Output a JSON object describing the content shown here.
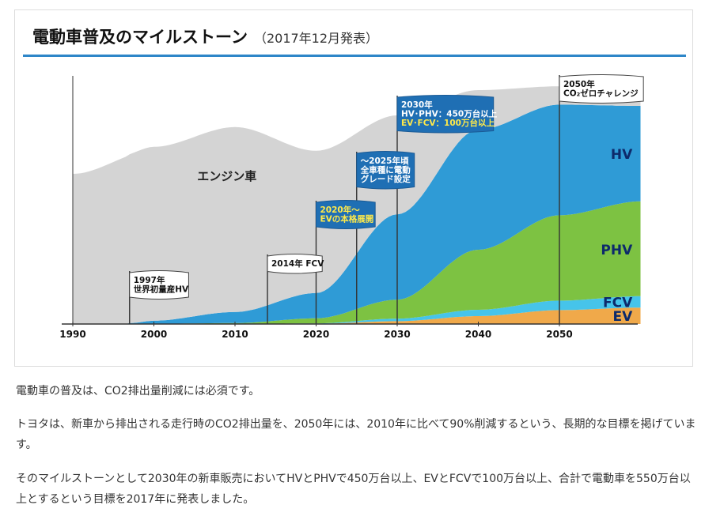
{
  "header": {
    "title": "電動車普及のマイルストーン",
    "subtitle": "（2017年12月発表）"
  },
  "chart_data": {
    "type": "area",
    "stacked": true,
    "x_ticks": [
      "1990",
      "2000",
      "2010",
      "2020",
      "2030",
      "2040",
      "2050"
    ],
    "xlim": [
      1990,
      2060
    ],
    "series": [
      {
        "name": "EV",
        "color": "#f0a94a",
        "points": [
          [
            1997,
            0
          ],
          [
            2010,
            0
          ],
          [
            2020,
            0.1
          ],
          [
            2030,
            0.9
          ],
          [
            2040,
            2.5
          ],
          [
            2050,
            4.4
          ],
          [
            2060,
            5.2
          ]
        ]
      },
      {
        "name": "FCV",
        "color": "#46c4ea",
        "points": [
          [
            1997,
            0
          ],
          [
            2010,
            0
          ],
          [
            2020,
            0.1
          ],
          [
            2030,
            0.8
          ],
          [
            2040,
            2.0
          ],
          [
            2050,
            3.0
          ],
          [
            2060,
            3.6
          ]
        ]
      },
      {
        "name": "PHV",
        "color": "#7dc242",
        "points": [
          [
            1997,
            0
          ],
          [
            2010,
            0.3
          ],
          [
            2020,
            1.6
          ],
          [
            2030,
            6.0
          ],
          [
            2040,
            19.0
          ],
          [
            2050,
            27.0
          ],
          [
            2060,
            30.0
          ]
        ]
      },
      {
        "name": "HV",
        "color": "#2f9bd6",
        "points": [
          [
            1997,
            0.3
          ],
          [
            2000,
            1.0
          ],
          [
            2010,
            3.5
          ],
          [
            2020,
            8.0
          ],
          [
            2030,
            27.0
          ],
          [
            2040,
            38.0
          ],
          [
            2050,
            35.0
          ],
          [
            2060,
            30.2
          ]
        ]
      },
      {
        "name": "エンジン車",
        "color": "#d4d4d4",
        "points": [
          [
            1990,
            47.5
          ],
          [
            2000,
            55.0
          ],
          [
            2010,
            58.5
          ],
          [
            2020,
            45.0
          ],
          [
            2030,
            31.3
          ],
          [
            2040,
            12.5
          ],
          [
            2050,
            5.8
          ],
          [
            2060,
            3.0
          ]
        ]
      }
    ],
    "milestones": [
      {
        "x": 1997,
        "lines": [
          "1997年",
          "世界初量産HV"
        ],
        "style": "white"
      },
      {
        "x": 2014,
        "lines": [
          "2014年 FCV"
        ],
        "style": "white"
      },
      {
        "x": 2020,
        "lines": [
          "2020年～",
          "EVの本格展開"
        ],
        "style": "blue-yellow"
      },
      {
        "x": 2025,
        "lines": [
          "～2025年頃",
          "全車種に電動",
          "グレード設定"
        ],
        "style": "blue"
      },
      {
        "x": 2030,
        "lines": [
          "2030年",
          "HV･PHV：450万台以上",
          "EV･FCV：100万台以上"
        ],
        "style": "blue-mixed"
      },
      {
        "x": 2050,
        "lines": [
          "2050年",
          "CO₂ゼロチャレンジ"
        ],
        "style": "white"
      }
    ]
  },
  "body_text": {
    "p1": "電動車の普及は、CO2排出量削減には必須です。",
    "p2": "トヨタは、新車から排出される走行時のCO2排出量を、2050年には、2010年に比べて90%削減するという、長期的な目標を掲げています。",
    "p3": "そのマイルストーンとして2030年の新車販売においてHVとPHVで450万台以上、EVとFCVで100万台以上、合計で電動車を550万台以上とするという目標を2017年に発表しました。"
  }
}
